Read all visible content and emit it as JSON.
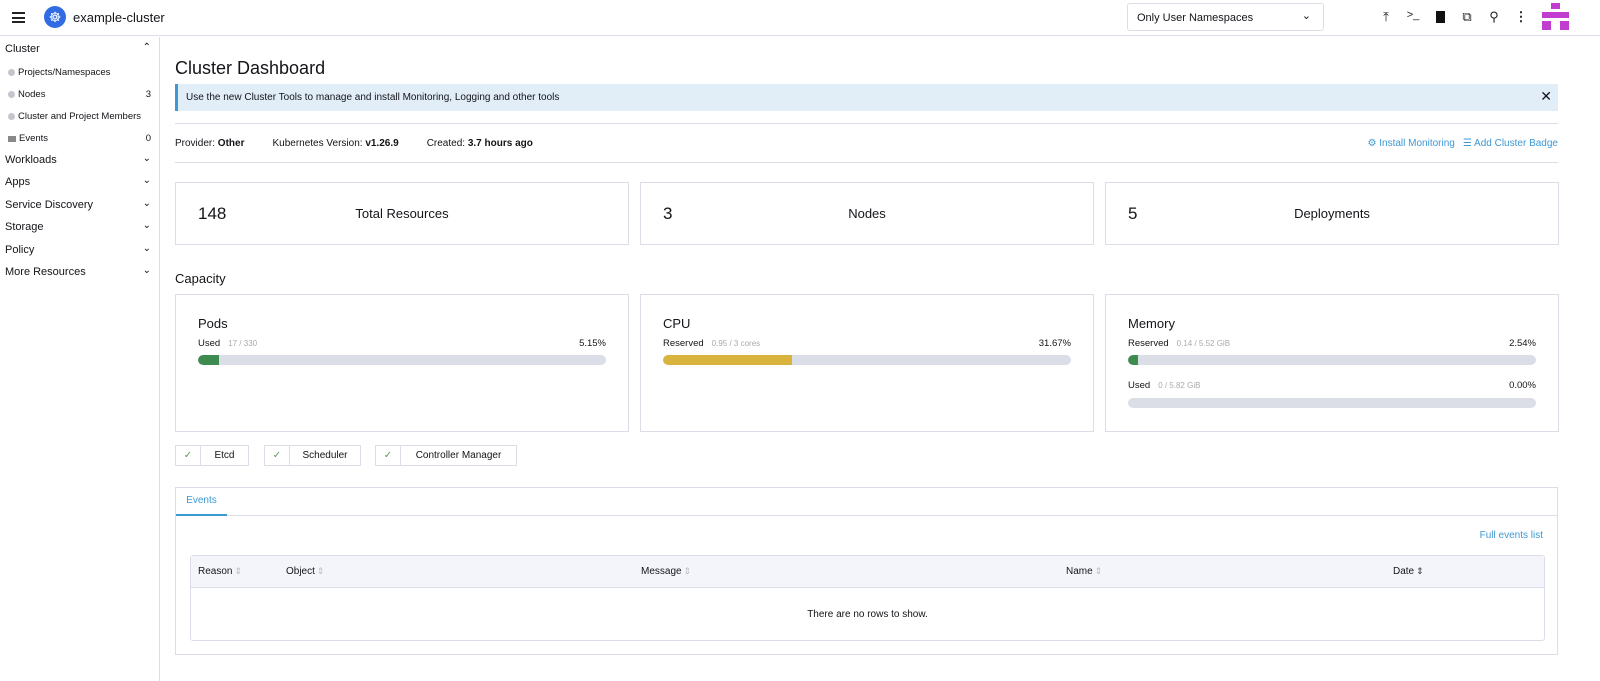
{
  "header": {
    "cluster_name": "example-cluster",
    "namespace_filter": "Only User Namespaces"
  },
  "sidebar": {
    "cluster": {
      "label": "Cluster",
      "items": [
        {
          "label": "Projects/Namespaces",
          "count": ""
        },
        {
          "label": "Nodes",
          "count": "3"
        },
        {
          "label": "Cluster and Project Members",
          "count": ""
        },
        {
          "label": "Events",
          "count": "0"
        }
      ]
    },
    "groups": [
      "Workloads",
      "Apps",
      "Service Discovery",
      "Storage",
      "Policy",
      "More Resources"
    ]
  },
  "page": {
    "title": "Cluster Dashboard",
    "banner": "Use the new Cluster Tools to manage and install Monitoring, Logging and other tools",
    "provider_label": "Provider:",
    "provider": "Other",
    "k8s_label": "Kubernetes Version:",
    "k8s_version": "v1.26.9",
    "created_label": "Created:",
    "created": "3.7 hours ago",
    "install_monitoring": "Install Monitoring",
    "add_badge": "Add Cluster Badge"
  },
  "summary": [
    {
      "value": "148",
      "label": "Total Resources"
    },
    {
      "value": "3",
      "label": "Nodes"
    },
    {
      "value": "5",
      "label": "Deployments"
    }
  ],
  "capacity": {
    "title": "Capacity",
    "cards": [
      {
        "title": "Pods",
        "rows": [
          {
            "label": "Used",
            "detail": "17 / 330",
            "pct": "5.15%",
            "value": 5.15,
            "color": "#3d8b4f"
          }
        ]
      },
      {
        "title": "CPU",
        "rows": [
          {
            "label": "Reserved",
            "detail": "0.95 / 3 cores",
            "pct": "31.67%",
            "value": 31.67,
            "color": "#d8b43f"
          }
        ]
      },
      {
        "title": "Memory",
        "rows": [
          {
            "label": "Reserved",
            "detail": "0.14 / 5.52 GiB",
            "pct": "2.54%",
            "value": 2.54,
            "color": "#3d8b4f"
          },
          {
            "label": "Used",
            "detail": "0 / 5.82 GiB",
            "pct": "0.00%",
            "value": 0,
            "color": "#3d8b4f"
          }
        ]
      }
    ]
  },
  "components": [
    "Etcd",
    "Scheduler",
    "Controller Manager"
  ],
  "events": {
    "tab": "Events",
    "full_list": "Full events list",
    "columns": [
      "Reason",
      "Object",
      "Message",
      "Name",
      "Date"
    ],
    "empty": "There are no rows to show."
  }
}
